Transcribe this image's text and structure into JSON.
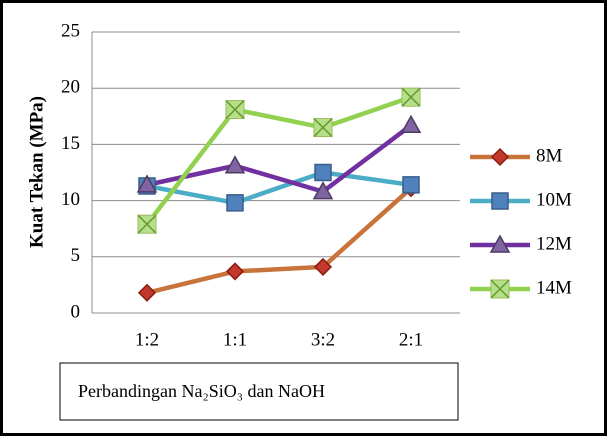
{
  "chart_data": {
    "type": "line",
    "y_label": "Kuat Tekan (MPa)",
    "x_label": "Perbandingan Na₂SiO₃ dan NaOH",
    "categories": [
      "1:2",
      "1:1",
      "3:2",
      "2:1"
    ],
    "series": [
      {
        "name": "8M",
        "color": "#c8733a",
        "marker": "diamond",
        "marker_color": "#c0392b",
        "values": [
          1.8,
          3.7,
          4.1,
          11.1
        ]
      },
      {
        "name": "10M",
        "color": "#4bacc6",
        "marker": "square",
        "marker_color": "#4f81bd",
        "values": [
          11.3,
          9.8,
          12.5,
          11.4
        ]
      },
      {
        "name": "12M",
        "color": "#7030a0",
        "marker": "triangle",
        "marker_color": "#8064a2",
        "values": [
          11.4,
          13.1,
          10.8,
          16.7
        ]
      },
      {
        "name": "14M",
        "color": "#92d050",
        "marker": "xsquare",
        "marker_color": "#b5e08a",
        "values": [
          7.9,
          18.1,
          16.5,
          19.2
        ]
      }
    ],
    "ylim": [
      0,
      25
    ],
    "yticks": [
      0,
      5,
      10,
      15,
      20,
      25
    ],
    "grid": true
  }
}
